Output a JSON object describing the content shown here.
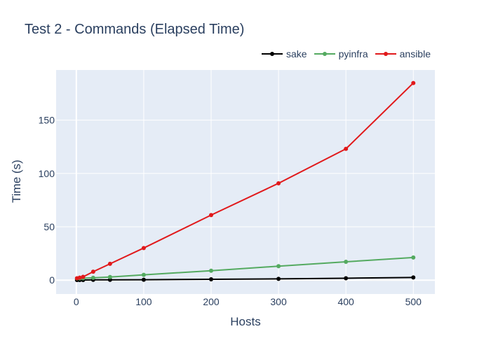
{
  "chart_data": {
    "type": "line",
    "title": "Test 2 - Commands (Elapsed Time)",
    "xlabel": "Hosts",
    "ylabel": "Time (s)",
    "xlim": [
      -30,
      532
    ],
    "ylim": [
      -13,
      197
    ],
    "x_ticks": [
      0,
      100,
      200,
      300,
      400,
      500
    ],
    "y_ticks": [
      0,
      50,
      100,
      150
    ],
    "grid": true,
    "legend_position": "top-right",
    "series": [
      {
        "name": "sake",
        "color": "#000000",
        "x": [
          1,
          5,
          10,
          25,
          50,
          100,
          200,
          300,
          400,
          500
        ],
        "y": [
          0.1,
          0.1,
          0.1,
          0.3,
          0.3,
          0.4,
          0.8,
          1.2,
          1.8,
          2.5
        ]
      },
      {
        "name": "pyinfra",
        "color": "#54aa60",
        "x": [
          1,
          5,
          10,
          25,
          50,
          100,
          200,
          300,
          400,
          500
        ],
        "y": [
          1.6,
          1.7,
          1.8,
          2.2,
          2.9,
          5.0,
          8.8,
          13.1,
          17.2,
          21.2
        ]
      },
      {
        "name": "ansible",
        "color": "#e1191b",
        "x": [
          1,
          5,
          10,
          25,
          50,
          100,
          200,
          300,
          400,
          500
        ],
        "y": [
          1.8,
          2.3,
          3.1,
          7.9,
          15.3,
          30.1,
          61.0,
          90.8,
          123.1,
          184.8
        ]
      }
    ]
  }
}
